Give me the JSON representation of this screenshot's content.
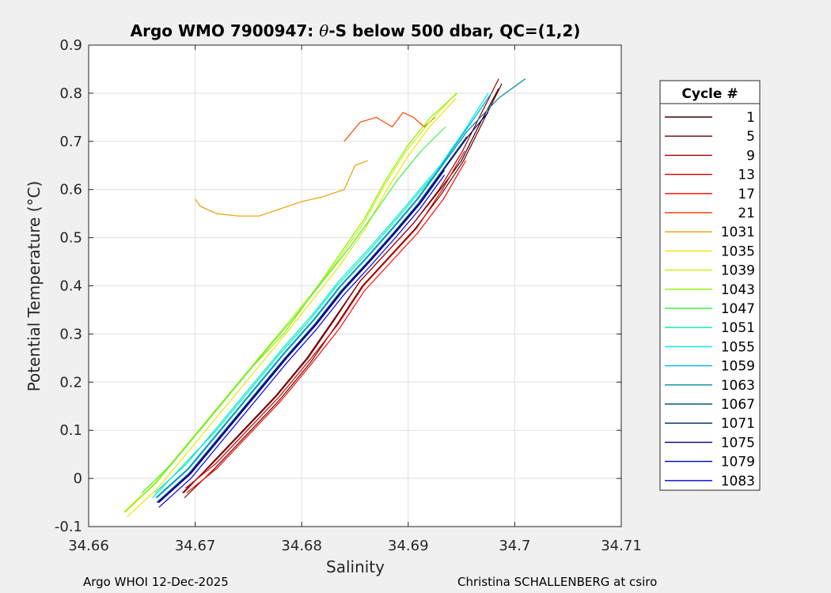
{
  "chart_data": {
    "type": "line",
    "title_main": "Argo WMO 7900947: ",
    "title_theta": "θ",
    "title_rest": "-S below 500 dbar,  QC=(1,2)",
    "xlabel": "Salinity",
    "ylabel": "Potential Temperature (°C)",
    "xlim": [
      34.66,
      34.71
    ],
    "ylim": [
      -0.1,
      0.9
    ],
    "x_ticks": [
      "34.66",
      "34.67",
      "34.68",
      "34.69",
      "34.7",
      "34.71"
    ],
    "x_tick_values": [
      34.66,
      34.67,
      34.68,
      34.69,
      34.7,
      34.71
    ],
    "y_ticks": [
      "0.9",
      "0.8",
      "0.7",
      "0.6",
      "0.5",
      "0.4",
      "0.3",
      "0.2",
      "0.1",
      "0",
      "-0.1"
    ],
    "y_tick_values": [
      0.9,
      0.8,
      0.7,
      0.6,
      0.5,
      0.4,
      0.3,
      0.2,
      0.1,
      0.0,
      -0.1
    ],
    "grid": true,
    "legend_position": "outside-right",
    "legend_title": "Cycle #",
    "series": [
      {
        "name": "1",
        "color": "#3d0000",
        "x": [
          34.6689,
          34.6715,
          34.6745,
          34.6775,
          34.6805,
          34.683,
          34.6855,
          34.688,
          34.6905,
          34.693,
          34.695,
          34.6968,
          34.6985
        ],
        "y": [
          -0.03,
          0.03,
          0.1,
          0.17,
          0.25,
          0.33,
          0.41,
          0.47,
          0.53,
          0.6,
          0.66,
          0.74,
          0.81
        ]
      },
      {
        "name": "5",
        "color": "#6e0000",
        "x": [
          34.669,
          34.6718,
          34.6748,
          34.6778,
          34.6808,
          34.6833,
          34.6857,
          34.6882,
          34.6907,
          34.6931,
          34.6952,
          34.697,
          34.6988
        ],
        "y": [
          -0.04,
          0.02,
          0.09,
          0.16,
          0.24,
          0.32,
          0.4,
          0.46,
          0.52,
          0.59,
          0.66,
          0.74,
          0.82
        ]
      },
      {
        "name": "9",
        "color": "#a30000",
        "x": [
          34.6688,
          34.6716,
          34.6746,
          34.6776,
          34.6806,
          34.6831,
          34.6855,
          34.688,
          34.6905,
          34.6929,
          34.6951,
          34.6969,
          34.6985
        ],
        "y": [
          -0.03,
          0.03,
          0.1,
          0.17,
          0.25,
          0.33,
          0.41,
          0.47,
          0.53,
          0.6,
          0.68,
          0.76,
          0.83
        ]
      },
      {
        "name": "13",
        "color": "#d40000",
        "x": [
          34.6691,
          34.6719,
          34.6749,
          34.6779,
          34.6809,
          34.6834,
          34.6858,
          34.6883,
          34.6908,
          34.6932,
          34.6953
        ],
        "y": [
          -0.02,
          0.03,
          0.1,
          0.17,
          0.25,
          0.32,
          0.4,
          0.46,
          0.52,
          0.6,
          0.68
        ]
      },
      {
        "name": "17",
        "color": "#ff0a00",
        "x": [
          34.6692,
          34.672,
          34.675,
          34.678,
          34.681,
          34.6835,
          34.6859,
          34.6884,
          34.6909,
          34.6933,
          34.6954
        ],
        "y": [
          -0.03,
          0.02,
          0.09,
          0.16,
          0.24,
          0.31,
          0.39,
          0.45,
          0.51,
          0.58,
          0.66
        ]
      },
      {
        "name": "21",
        "color": "#ff4400",
        "x": [
          34.684,
          34.6855,
          34.687,
          34.6885,
          34.6895,
          34.6905,
          34.6915,
          34.6925
        ],
        "y": [
          0.7,
          0.74,
          0.75,
          0.73,
          0.76,
          0.75,
          0.73,
          0.75
        ]
      },
      {
        "name": "1031",
        "color": "#e8a000",
        "x": [
          34.67,
          34.6705,
          34.672,
          34.674,
          34.676,
          34.678,
          34.68,
          34.682,
          34.684,
          34.685,
          34.6862
        ],
        "y": [
          0.58,
          0.565,
          0.55,
          0.545,
          0.545,
          0.56,
          0.575,
          0.585,
          0.6,
          0.65,
          0.66
        ]
      },
      {
        "name": "1035",
        "color": "#f0e600",
        "x": [
          34.6636,
          34.6665,
          34.6695,
          34.6725,
          34.6755,
          34.6785,
          34.681,
          34.6835,
          34.686,
          34.688,
          34.69,
          34.692,
          34.6945
        ],
        "y": [
          -0.08,
          -0.02,
          0.06,
          0.14,
          0.22,
          0.3,
          0.37,
          0.44,
          0.52,
          0.6,
          0.67,
          0.73,
          0.79
        ]
      },
      {
        "name": "1039",
        "color": "#c8f000",
        "x": [
          34.6633,
          34.6662,
          34.6692,
          34.6722,
          34.6752,
          34.6782,
          34.6808,
          34.6833,
          34.6858,
          34.6878,
          34.6898,
          34.692,
          34.6945
        ],
        "y": [
          -0.07,
          -0.01,
          0.07,
          0.15,
          0.23,
          0.31,
          0.38,
          0.45,
          0.53,
          0.61,
          0.68,
          0.74,
          0.8
        ]
      },
      {
        "name": "1043",
        "color": "#8cf000",
        "x": [
          34.6634,
          34.6663,
          34.6693,
          34.6723,
          34.6753,
          34.6783,
          34.6809,
          34.6834,
          34.6859,
          34.6879,
          34.6899,
          34.6921,
          34.6946
        ],
        "y": [
          -0.07,
          -0.01,
          0.07,
          0.15,
          0.23,
          0.3,
          0.38,
          0.46,
          0.54,
          0.62,
          0.69,
          0.75,
          0.8
        ]
      },
      {
        "name": "1047",
        "color": "#3cf040",
        "x": [
          34.665,
          34.6678,
          34.6708,
          34.6738,
          34.6768,
          34.6795,
          34.682,
          34.6845,
          34.6868,
          34.689,
          34.6912,
          34.6935
        ],
        "y": [
          -0.03,
          0.03,
          0.11,
          0.19,
          0.27,
          0.34,
          0.41,
          0.48,
          0.55,
          0.62,
          0.68,
          0.73
        ]
      },
      {
        "name": "1051",
        "color": "#00f0a0",
        "x": [
          34.666,
          34.669,
          34.672,
          34.675,
          34.678,
          34.6808,
          34.6833,
          34.6858,
          34.6882,
          34.6905,
          34.6928,
          34.695,
          34.6972
        ],
        "y": [
          -0.04,
          0.03,
          0.1,
          0.18,
          0.26,
          0.33,
          0.4,
          0.46,
          0.52,
          0.58,
          0.64,
          0.71,
          0.78
        ]
      },
      {
        "name": "1055",
        "color": "#00e6e6",
        "x": [
          34.6662,
          34.6692,
          34.6722,
          34.6752,
          34.6782,
          34.681,
          34.6835,
          34.686,
          34.6884,
          34.6907,
          34.693,
          34.6952,
          34.6975
        ],
        "y": [
          -0.03,
          0.03,
          0.11,
          0.19,
          0.27,
          0.34,
          0.41,
          0.47,
          0.53,
          0.59,
          0.65,
          0.72,
          0.8
        ]
      },
      {
        "name": "1059",
        "color": "#00b4f0",
        "x": [
          34.6663,
          34.6693,
          34.6723,
          34.6753,
          34.6783,
          34.6811,
          34.6836,
          34.6861,
          34.6885,
          34.6908,
          34.6931,
          34.6953,
          34.6978
        ],
        "y": [
          -0.04,
          0.02,
          0.1,
          0.18,
          0.26,
          0.33,
          0.4,
          0.46,
          0.52,
          0.58,
          0.65,
          0.72,
          0.8
        ]
      },
      {
        "name": "1063",
        "color": "#008ca0",
        "x": [
          34.6664,
          34.6694,
          34.6724,
          34.6754,
          34.6784,
          34.6812,
          34.6837,
          34.6862,
          34.6886,
          34.6909,
          34.6932,
          34.6955,
          34.6985,
          34.701
        ],
        "y": [
          -0.04,
          0.02,
          0.1,
          0.18,
          0.26,
          0.33,
          0.4,
          0.46,
          0.52,
          0.58,
          0.65,
          0.72,
          0.79,
          0.83
        ]
      },
      {
        "name": "1067",
        "color": "#005a6e",
        "x": [
          34.6664,
          34.6694,
          34.6724,
          34.6754,
          34.6784,
          34.6812,
          34.6837,
          34.6862,
          34.6886,
          34.6909,
          34.6932,
          34.6955
        ],
        "y": [
          -0.05,
          0.01,
          0.09,
          0.17,
          0.25,
          0.32,
          0.39,
          0.45,
          0.51,
          0.57,
          0.64,
          0.71
        ]
      },
      {
        "name": "1071",
        "color": "#002850",
        "x": [
          34.6665,
          34.6695,
          34.6725,
          34.6755,
          34.6785,
          34.6813,
          34.6838,
          34.6863,
          34.6887,
          34.691,
          34.6933,
          34.6956
        ],
        "y": [
          -0.05,
          0.01,
          0.09,
          0.17,
          0.25,
          0.32,
          0.39,
          0.45,
          0.51,
          0.57,
          0.64,
          0.71
        ]
      },
      {
        "name": "1075",
        "color": "#000080",
        "x": [
          34.6665,
          34.6695,
          34.6725,
          34.6755,
          34.6785,
          34.6813,
          34.6838,
          34.6863,
          34.6887,
          34.691,
          34.6933,
          34.6956,
          34.6975
        ],
        "y": [
          -0.05,
          0.01,
          0.09,
          0.17,
          0.25,
          0.32,
          0.39,
          0.45,
          0.51,
          0.57,
          0.64,
          0.71,
          0.76
        ]
      },
      {
        "name": "1079",
        "color": "#0000b4",
        "x": [
          34.6666,
          34.6696,
          34.6726,
          34.6756,
          34.6786,
          34.6814,
          34.6839,
          34.6864,
          34.6888,
          34.6911,
          34.6934
        ],
        "y": [
          -0.05,
          0.01,
          0.09,
          0.17,
          0.25,
          0.32,
          0.39,
          0.45,
          0.51,
          0.57,
          0.64
        ]
      },
      {
        "name": "1083",
        "color": "#0000e6",
        "x": [
          34.6666,
          34.6696,
          34.6726,
          34.6756,
          34.6786,
          34.6814,
          34.6839,
          34.6864,
          34.6888,
          34.6911,
          34.6934
        ],
        "y": [
          -0.06,
          0.0,
          0.08,
          0.16,
          0.24,
          0.31,
          0.38,
          0.44,
          0.5,
          0.56,
          0.63
        ]
      }
    ]
  },
  "footer": {
    "left": "Argo WHOI 12-Dec-2025",
    "right": "Christina SCHALLENBERG at csiro"
  }
}
